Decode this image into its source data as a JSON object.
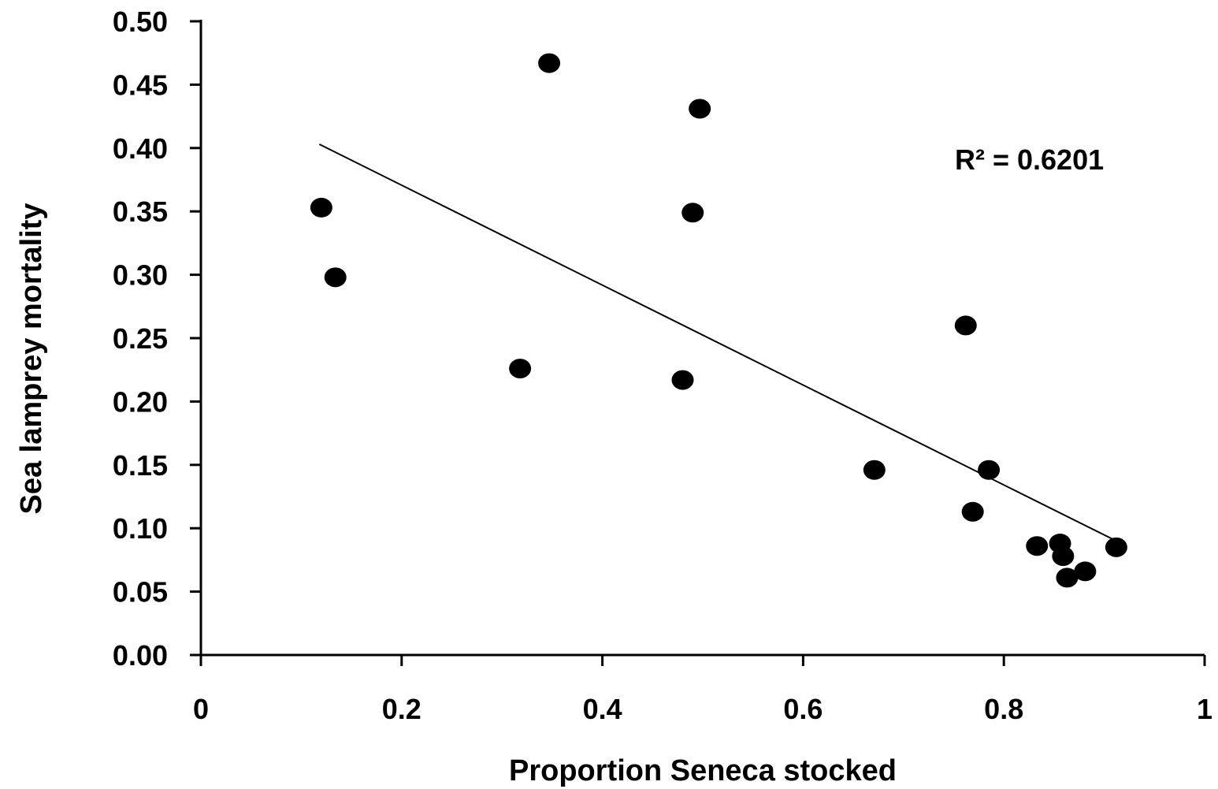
{
  "chart_data": {
    "type": "scatter",
    "title": "",
    "xlabel": "Proportion Seneca stocked",
    "ylabel": "Sea lamprey mortality",
    "xlim": [
      0,
      1
    ],
    "ylim": [
      0,
      0.5
    ],
    "x_ticks": [
      0,
      0.2,
      0.4,
      0.6,
      0.8,
      1
    ],
    "x_tick_labels": [
      "0",
      "0.2",
      "0.4",
      "0.6",
      "0.8",
      "1"
    ],
    "y_ticks": [
      0,
      0.05,
      0.1,
      0.15,
      0.2,
      0.25,
      0.3,
      0.35,
      0.4,
      0.45,
      0.5
    ],
    "y_tick_labels": [
      "0.00",
      "0.05",
      "0.10",
      "0.15",
      "0.20",
      "0.25",
      "0.30",
      "0.35",
      "0.40",
      "0.45",
      "0.50"
    ],
    "grid": false,
    "legend": "none",
    "point_color": "#000000",
    "points": [
      {
        "x": 0.12,
        "y": 0.353
      },
      {
        "x": 0.134,
        "y": 0.298
      },
      {
        "x": 0.318,
        "y": 0.226
      },
      {
        "x": 0.347,
        "y": 0.467
      },
      {
        "x": 0.48,
        "y": 0.217
      },
      {
        "x": 0.49,
        "y": 0.349
      },
      {
        "x": 0.497,
        "y": 0.431
      },
      {
        "x": 0.671,
        "y": 0.146
      },
      {
        "x": 0.762,
        "y": 0.26
      },
      {
        "x": 0.769,
        "y": 0.113
      },
      {
        "x": 0.785,
        "y": 0.146
      },
      {
        "x": 0.833,
        "y": 0.086
      },
      {
        "x": 0.856,
        "y": 0.088
      },
      {
        "x": 0.859,
        "y": 0.078
      },
      {
        "x": 0.863,
        "y": 0.061
      },
      {
        "x": 0.881,
        "y": 0.066
      },
      {
        "x": 0.912,
        "y": 0.085
      }
    ],
    "trendline": {
      "type": "linear",
      "x": [
        0.118,
        0.912
      ],
      "y": [
        0.403,
        0.09
      ]
    },
    "annotation": "R² = 0.6201"
  }
}
